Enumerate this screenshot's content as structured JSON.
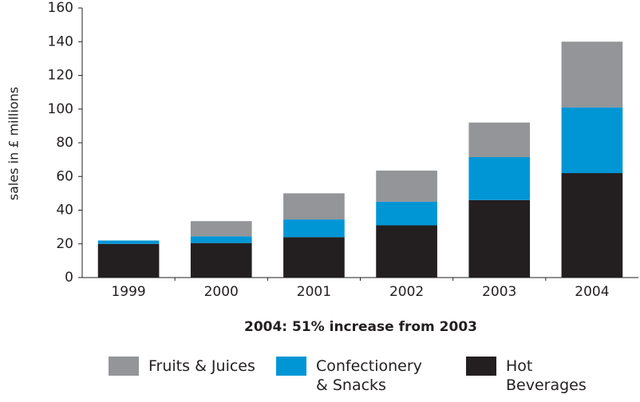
{
  "chart_data": {
    "type": "stacked_bar",
    "y_label": "sales in £ millions",
    "annotation": "2004: 51% increase from 2003",
    "categories": [
      "1999",
      "2000",
      "2001",
      "2002",
      "2003",
      "2004"
    ],
    "series": [
      {
        "name": "Fruits & Juices",
        "color": "#939598",
        "values": [
          0,
          9,
          15.5,
          18.5,
          20.5,
          39
        ]
      },
      {
        "name": "Confectionery & Snacks",
        "color": "#0096d6",
        "values": [
          2,
          4,
          10.5,
          14,
          25.5,
          39
        ]
      },
      {
        "name": "Hot Beverages",
        "color": "#231f20",
        "values": [
          20,
          20.5,
          24,
          31,
          46,
          62
        ]
      }
    ],
    "ylim": [
      0,
      160
    ],
    "yticks": [
      0,
      20,
      40,
      60,
      80,
      100,
      120,
      140,
      160
    ]
  }
}
